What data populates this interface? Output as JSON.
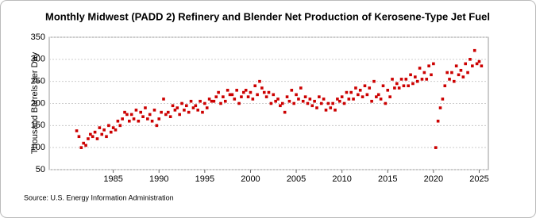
{
  "chart_data": {
    "type": "scatter",
    "title": "Monthly Midwest (PADD 2) Refinery and Blender Net Production of Kerosene-Type Jet Fuel",
    "ylabel": "Thousand Barrels per Day",
    "source": "Source: U.S. Energy Information Administration",
    "xlim": [
      1978,
      2026
    ],
    "xticks": [
      1985,
      1990,
      1995,
      2000,
      2005,
      2010,
      2015,
      2020,
      2025
    ],
    "ylim": [
      50,
      350
    ],
    "yticks": [
      50,
      100,
      150,
      200,
      250,
      300,
      350
    ],
    "grid": true,
    "x": [
      1981,
      1981.25,
      1981.5,
      1981.75,
      1982,
      1982.25,
      1982.5,
      1982.75,
      1983,
      1983.25,
      1983.5,
      1983.75,
      1984,
      1984.25,
      1984.5,
      1984.75,
      1985,
      1985.25,
      1985.5,
      1985.75,
      1986,
      1986.25,
      1986.5,
      1986.75,
      1987,
      1987.25,
      1987.5,
      1987.75,
      1988,
      1988.25,
      1988.5,
      1988.75,
      1989,
      1989.25,
      1989.5,
      1989.75,
      1990,
      1990.25,
      1990.5,
      1990.75,
      1991,
      1991.25,
      1991.5,
      1991.75,
      1992,
      1992.25,
      1992.5,
      1992.75,
      1993,
      1993.25,
      1993.5,
      1993.75,
      1994,
      1994.25,
      1994.5,
      1994.75,
      1995,
      1995.25,
      1995.5,
      1995.75,
      1996,
      1996.25,
      1996.5,
      1996.75,
      1997,
      1997.25,
      1997.5,
      1997.75,
      1998,
      1998.25,
      1998.5,
      1998.75,
      1999,
      1999.25,
      1999.5,
      1999.75,
      2000,
      2000.25,
      2000.5,
      2000.75,
      2001,
      2001.25,
      2001.5,
      2001.75,
      2002,
      2002.25,
      2002.5,
      2002.75,
      2003,
      2003.25,
      2003.5,
      2003.75,
      2004,
      2004.25,
      2004.5,
      2004.75,
      2005,
      2005.25,
      2005.5,
      2005.75,
      2006,
      2006.25,
      2006.5,
      2006.75,
      2007,
      2007.25,
      2007.5,
      2007.75,
      2008,
      2008.25,
      2008.5,
      2008.75,
      2009,
      2009.25,
      2009.5,
      2009.75,
      2010,
      2010.25,
      2010.5,
      2010.75,
      2011,
      2011.25,
      2011.5,
      2011.75,
      2012,
      2012.25,
      2012.5,
      2012.75,
      2013,
      2013.25,
      2013.5,
      2013.75,
      2014,
      2014.25,
      2014.5,
      2014.75,
      2015,
      2015.25,
      2015.5,
      2015.75,
      2016,
      2016.25,
      2016.5,
      2016.75,
      2017,
      2017.25,
      2017.5,
      2017.75,
      2018,
      2018.25,
      2018.5,
      2018.75,
      2019,
      2019.25,
      2019.5,
      2019.75,
      2020,
      2020.25,
      2020.5,
      2020.75,
      2021,
      2021.25,
      2021.5,
      2021.75,
      2022,
      2022.25,
      2022.5,
      2022.75,
      2023,
      2023.25,
      2023.5,
      2023.75,
      2024,
      2024.25,
      2024.5,
      2024.75,
      2025,
      2025.25
    ],
    "series": [
      {
        "color": "#cc0000",
        "values": [
          138,
          125,
          100,
          110,
          105,
          120,
          130,
          125,
          135,
          120,
          145,
          130,
          140,
          125,
          150,
          135,
          145,
          140,
          160,
          150,
          165,
          180,
          175,
          160,
          175,
          165,
          185,
          160,
          180,
          170,
          190,
          165,
          175,
          160,
          185,
          150,
          165,
          180,
          210,
          175,
          180,
          170,
          195,
          185,
          190,
          175,
          200,
          185,
          195,
          180,
          205,
          190,
          195,
          185,
          205,
          180,
          200,
          190,
          210,
          205,
          205,
          215,
          225,
          200,
          215,
          205,
          230,
          220,
          220,
          210,
          230,
          200,
          215,
          225,
          230,
          215,
          225,
          210,
          240,
          220,
          250,
          235,
          225,
          215,
          225,
          200,
          220,
          205,
          210,
          195,
          200,
          180,
          215,
          205,
          230,
          200,
          220,
          210,
          235,
          205,
          215,
          200,
          210,
          195,
          205,
          190,
          215,
          200,
          210,
          185,
          200,
          190,
          200,
          185,
          210,
          205,
          215,
          200,
          225,
          210,
          225,
          210,
          235,
          220,
          230,
          215,
          240,
          220,
          235,
          205,
          250,
          215,
          220,
          210,
          240,
          200,
          230,
          215,
          255,
          235,
          245,
          235,
          255,
          240,
          255,
          240,
          265,
          245,
          260,
          250,
          280,
          255,
          270,
          255,
          285,
          265,
          290,
          100,
          160,
          190,
          210,
          240,
          270,
          255,
          270,
          250,
          285,
          265,
          275,
          260,
          290,
          270,
          300,
          285,
          320,
          290,
          295,
          285
        ]
      }
    ]
  }
}
